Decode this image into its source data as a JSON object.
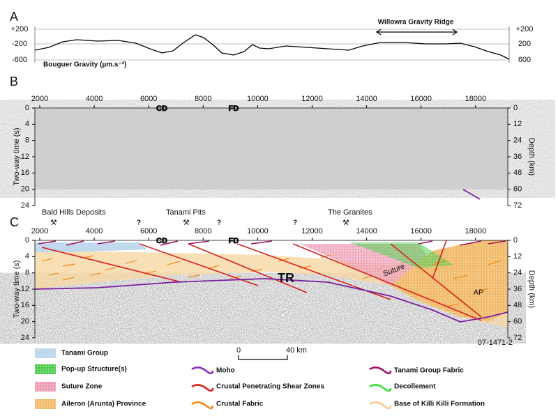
{
  "panel_a": {
    "label": "A",
    "y_ticks_left": [
      "+200",
      "-200",
      "-600"
    ],
    "y_ticks_right": [
      "+200",
      "200",
      "600"
    ],
    "axis_title": "Bouguer Gravity (µm.s⁻²)",
    "annotation": "Willowra Gravity Ridge"
  },
  "panel_b": {
    "label": "B",
    "x_ticks": [
      2000,
      4000,
      6000,
      8000,
      10000,
      12000,
      14000,
      16000,
      18000
    ],
    "y_ticks_left": [
      0,
      4,
      8,
      12,
      16,
      20,
      24
    ],
    "y_ticks_right": [
      0,
      12,
      24,
      36,
      48,
      60,
      72
    ],
    "y_title": "Two-way time (s)",
    "y2_title": "Depth (km)",
    "markers": [
      "CD",
      "FD"
    ]
  },
  "panel_c": {
    "label": "C",
    "sites": [
      "Bald Hills Deposits",
      "Tanami Pits",
      "The Granites"
    ],
    "questions": [
      "?",
      "?",
      "?"
    ],
    "x_ticks": [
      2000,
      4000,
      6000,
      8000,
      10000,
      12000,
      14000,
      16000,
      18000
    ],
    "y_ticks_left": [
      0,
      4,
      8,
      12,
      16,
      20,
      24
    ],
    "y_ticks_right": [
      0,
      12,
      24,
      36,
      48,
      60,
      72
    ],
    "y_title": "Two-way time (s)",
    "y2_title": "Depth (km)",
    "markers": [
      "CD",
      "FD"
    ],
    "labels": [
      "TR",
      "Suture",
      "AP"
    ]
  },
  "figure_id": "07-1471-2",
  "scale_bar": {
    "start": "0",
    "end": "40 km"
  },
  "legend": {
    "areas": [
      "Tanami Group",
      "Pop-up Structure(s)",
      "Suture Zone",
      "Aileron (Arunta) Province"
    ],
    "lines": [
      "Moho",
      "Crustal Penetrating Shear Zones",
      "Crustal Fabric",
      "Tanami Group Fabric",
      "Decollement",
      "Base of Killi Killi Formation"
    ]
  }
}
